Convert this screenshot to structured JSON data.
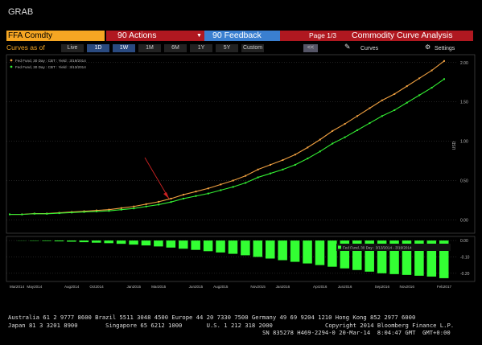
{
  "header": {
    "title": "GRAB"
  },
  "toolbar": {
    "security": "FFA Comdty",
    "actions": "90 Actions",
    "feedback": "90 Feedback",
    "page": "Page 1/3",
    "function": "Commodity Curve Analysis"
  },
  "controls": {
    "label": "Curves as of",
    "buttons": [
      "Live",
      "1D",
      "1W",
      "1M",
      "6M",
      "1Y",
      "5Y",
      "Custom"
    ],
    "back": "<<",
    "curves": "Curves",
    "settings": "Settings"
  },
  "chart_data": [
    {
      "type": "line",
      "y_label": "USD",
      "categories": [
        "Mar2014",
        null,
        "May2014",
        null,
        null,
        "Aug2014",
        null,
        "Oct2014",
        null,
        null,
        "Jan2015",
        null,
        "Mar2015",
        null,
        null,
        "Jun2015",
        null,
        "Aug2015",
        null,
        null,
        "Nov2015",
        null,
        "Jan2016",
        null,
        null,
        "Apr2016",
        null,
        "Jun2016",
        null,
        null,
        "Sep2016",
        null,
        "Nov2016",
        null,
        null,
        "Feb2017"
      ],
      "series": [
        {
          "name": "Fed Fund, 30 Day : CBT : Yield : 3/19/2014",
          "color": "#f0a040",
          "values": [
            0.07,
            0.07,
            0.08,
            0.08,
            0.09,
            0.1,
            0.11,
            0.12,
            0.13,
            0.15,
            0.17,
            0.2,
            0.23,
            0.27,
            0.32,
            0.36,
            0.4,
            0.45,
            0.5,
            0.56,
            0.64,
            0.7,
            0.76,
            0.83,
            0.92,
            1.02,
            1.13,
            1.22,
            1.32,
            1.42,
            1.52,
            1.6,
            1.7,
            1.8,
            1.9,
            2.02
          ]
        },
        {
          "name": "Fed Fund, 30 Day : CBT : Yield : 3/13/2014",
          "color": "#33ee33",
          "values": [
            0.07,
            0.069,
            0.078,
            0.077,
            0.085,
            0.093,
            0.1,
            0.107,
            0.114,
            0.13,
            0.145,
            0.17,
            0.194,
            0.227,
            0.27,
            0.303,
            0.335,
            0.377,
            0.419,
            0.47,
            0.54,
            0.59,
            0.64,
            0.7,
            0.78,
            0.87,
            0.97,
            1.05,
            1.14,
            1.23,
            1.32,
            1.395,
            1.49,
            1.585,
            1.68,
            1.79
          ]
        }
      ],
      "ylim": [
        -0.17,
        2.1
      ],
      "yticks": [
        {
          "value": 0,
          "label": "0.00"
        },
        {
          "value": 0.5,
          "label": "0.50"
        },
        {
          "value": 1,
          "label": "1.00"
        },
        {
          "value": 1.5,
          "label": "1.50"
        },
        {
          "value": 2,
          "label": "2.00"
        }
      ],
      "grid": true
    },
    {
      "type": "bar",
      "series": [
        {
          "name": "Fed Fund, 30 Day : 3/13/2014 - 3/19/2014",
          "color": "#33ff33",
          "values": [
            0,
            -0.001,
            -0.002,
            -0.003,
            -0.005,
            -0.007,
            -0.01,
            -0.013,
            -0.016,
            -0.02,
            -0.025,
            -0.03,
            -0.036,
            -0.043,
            -0.05,
            -0.057,
            -0.065,
            -0.073,
            -0.081,
            -0.09,
            -0.1,
            -0.11,
            -0.12,
            -0.13,
            -0.14,
            -0.15,
            -0.16,
            -0.17,
            -0.18,
            -0.19,
            -0.2,
            -0.205,
            -0.21,
            -0.215,
            -0.22,
            -0.23
          ]
        }
      ],
      "ylim": [
        -0.25,
        0.025
      ],
      "yticks": [
        {
          "value": 0,
          "label": "0.00"
        },
        {
          "value": -0.1,
          "label": "-0.10"
        },
        {
          "value": -0.2,
          "label": "-0.20"
        }
      ],
      "grid": true
    }
  ],
  "footer": {
    "lines": [
      "Australia 61 2 9777 8600 Brazil 5511 3048 4500 Europe 44 20 7330 7500 Germany 49 69 9204 1210 Hong Kong 852 2977 6000",
      "Japan 81 3 3201 8900        Singapore 65 6212 1000       U.S. 1 212 318 2000",
      "Copyright 2014 Bloomberg Finance L.P.",
      "SN 835278 H469-2294-0 20-Mar-14  8:04:47 GMT  GMT+0:00"
    ]
  }
}
